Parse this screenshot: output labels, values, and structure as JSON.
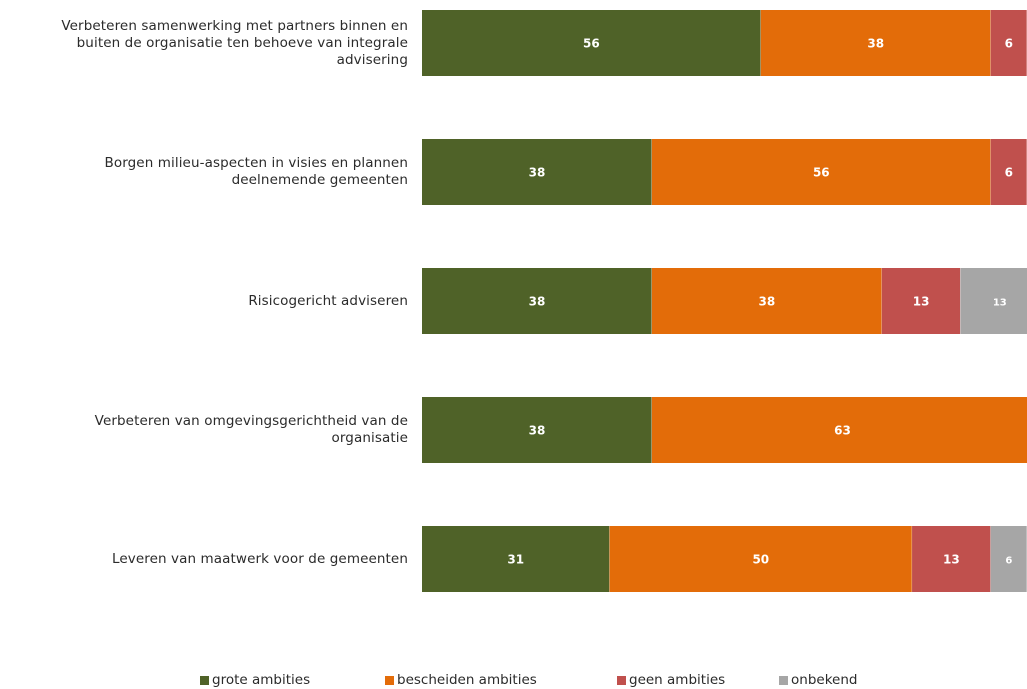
{
  "chart_data": {
    "type": "bar",
    "orientation": "horizontal",
    "stacked": true,
    "categories": [
      "Verbeteren samenwerking met partners binnen en buiten de organisatie ten behoeve van integrale advisering",
      "Borgen milieu-aspecten in visies en plannen deelnemende gemeenten",
      "Risicogericht adviseren",
      "Verbeteren van omgevingsgerichtheid van de organisatie",
      "Leveren van maatwerk voor de gemeenten"
    ],
    "category_lines": [
      [
        "Verbeteren samenwerking met partners binnen en",
        "buiten de organisatie ten behoeve van integrale",
        "advisering"
      ],
      [
        "Borgen milieu-aspecten in visies en plannen",
        "deelnemende gemeenten"
      ],
      [
        "Risicogericht adviseren"
      ],
      [
        "Verbeteren van omgevingsgerichtheid van de",
        "organisatie"
      ],
      [
        "Leveren van maatwerk voor de gemeenten"
      ]
    ],
    "series": [
      {
        "name": "grote ambities",
        "color": "#4f6228",
        "values": [
          56,
          38,
          38,
          38,
          31
        ]
      },
      {
        "name": "bescheiden ambities",
        "color": "#e36c09",
        "values": [
          38,
          56,
          38,
          63,
          50
        ]
      },
      {
        "name": "geen ambities",
        "color": "#c0504d",
        "values": [
          6,
          6,
          13,
          0,
          13
        ]
      },
      {
        "name": "onbekend",
        "color": "#a6a6a6",
        "values": [
          0,
          0,
          13,
          0,
          6
        ]
      }
    ],
    "xlim": [
      0,
      100
    ],
    "grid": false,
    "legend_position": "bottom"
  }
}
